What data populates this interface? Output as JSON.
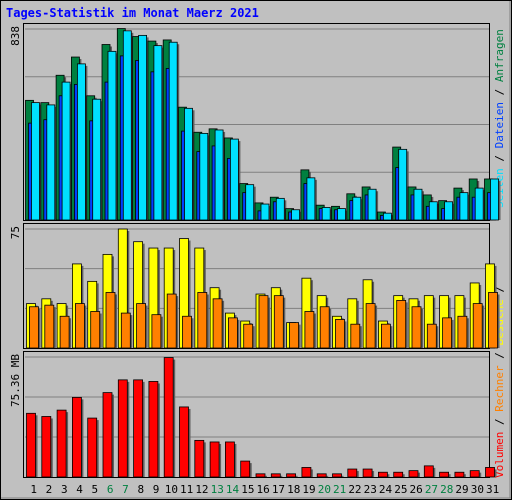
{
  "title": "Tages-Statistik im Monat Maerz 2021",
  "colors": {
    "background": "#c0c0c0",
    "anfragen": "#008040",
    "dateien": "#0040ff",
    "seiten": "#00e0ff",
    "besuche": "#ffff00",
    "rechner": "#ff8000",
    "volumen": "#ff0000",
    "weekend_label": "#008040",
    "weekday_label": "#000000"
  },
  "legend": {
    "right_upper": [
      {
        "text": "Seiten",
        "color": "#00e0ff"
      },
      {
        "text": " / ",
        "color": "#000000"
      },
      {
        "text": "Dateien",
        "color": "#0040ff"
      },
      {
        "text": " / ",
        "color": "#000000"
      },
      {
        "text": "Anfragen",
        "color": "#008040"
      }
    ],
    "right_lower": [
      {
        "text": "Volumen",
        "color": "#ff0000"
      },
      {
        "text": " / ",
        "color": "#000000"
      },
      {
        "text": "Rechner",
        "color": "#ff8000"
      },
      {
        "text": " / ",
        "color": "#000000"
      },
      {
        "text": "Besuche",
        "color": "#ffff00"
      },
      {
        "text": " / ",
        "color": "#000000"
      }
    ]
  },
  "chart_data": [
    {
      "type": "bar",
      "panel": "requests",
      "ylabel": "838",
      "ylim": [
        0,
        838
      ],
      "categories": [
        "1",
        "2",
        "3",
        "4",
        "5",
        "6",
        "7",
        "8",
        "9",
        "10",
        "11",
        "12",
        "13",
        "14",
        "15",
        "16",
        "17",
        "18",
        "19",
        "20",
        "21",
        "22",
        "23",
        "24",
        "25",
        "26",
        "27",
        "28",
        "29",
        "30",
        "31"
      ],
      "weekend": [
        "6",
        "7",
        "13",
        "14",
        "20",
        "21",
        "27",
        "28"
      ],
      "series": [
        {
          "name": "Anfragen",
          "color": "#008040",
          "values": [
            525,
            515,
            635,
            715,
            545,
            770,
            840,
            805,
            785,
            790,
            495,
            385,
            400,
            360,
            160,
            75,
            100,
            50,
            220,
            65,
            60,
            115,
            145,
            35,
            320,
            145,
            110,
            85,
            140,
            180,
            180
          ]
        },
        {
          "name": "Dateien",
          "color": "#0040ff",
          "values": [
            425,
            440,
            545,
            595,
            435,
            605,
            720,
            700,
            650,
            665,
            390,
            300,
            325,
            270,
            120,
            40,
            80,
            35,
            160,
            50,
            45,
            85,
            110,
            20,
            230,
            110,
            60,
            50,
            100,
            100,
            120
          ]
        },
        {
          "name": "Seiten",
          "color": "#00e0ff",
          "values": [
            515,
            505,
            605,
            685,
            530,
            740,
            830,
            810,
            765,
            780,
            490,
            380,
            395,
            355,
            155,
            70,
            95,
            45,
            185,
            55,
            50,
            100,
            135,
            30,
            310,
            135,
            80,
            80,
            120,
            140,
            180
          ]
        }
      ]
    },
    {
      "type": "bar",
      "panel": "visits",
      "ylabel": "75",
      "ylim": [
        0,
        75
      ],
      "categories": [
        "1",
        "2",
        "3",
        "4",
        "5",
        "6",
        "7",
        "8",
        "9",
        "10",
        "11",
        "12",
        "13",
        "14",
        "15",
        "16",
        "17",
        "18",
        "19",
        "20",
        "21",
        "22",
        "23",
        "24",
        "25",
        "26",
        "27",
        "28",
        "29",
        "30",
        "31"
      ],
      "series": [
        {
          "name": "Besuche",
          "color": "#ffff00",
          "values": [
            28,
            31,
            28,
            53,
            42,
            59,
            75,
            67,
            63,
            63,
            69,
            63,
            38,
            22,
            17,
            34,
            38,
            16,
            44,
            33,
            20,
            31,
            43,
            17,
            33,
            31,
            33,
            33,
            33,
            41,
            53
          ]
        },
        {
          "name": "Rechner",
          "color": "#ff8000",
          "values": [
            26,
            27,
            20,
            28,
            23,
            35,
            22,
            28,
            21,
            34,
            20,
            35,
            31,
            19,
            15,
            33,
            33,
            16,
            23,
            26,
            18,
            15,
            28,
            15,
            30,
            26,
            15,
            19,
            20,
            28,
            35
          ]
        }
      ]
    },
    {
      "type": "bar",
      "panel": "volume",
      "ylabel": "75.36 MB",
      "ylim": [
        0,
        75.36
      ],
      "categories": [
        "1",
        "2",
        "3",
        "4",
        "5",
        "6",
        "7",
        "8",
        "9",
        "10",
        "11",
        "12",
        "13",
        "14",
        "15",
        "16",
        "17",
        "18",
        "19",
        "20",
        "21",
        "22",
        "23",
        "24",
        "25",
        "26",
        "27",
        "28",
        "29",
        "30",
        "31"
      ],
      "series": [
        {
          "name": "Volumen",
          "color": "#ff0000",
          "values": [
            40,
            38,
            42,
            50,
            37,
            53,
            61,
            61,
            60,
            75,
            44,
            23,
            22,
            22,
            10,
            2,
            2,
            2,
            6,
            2,
            2,
            5,
            5,
            3,
            3,
            4,
            7,
            3,
            3,
            4,
            6
          ]
        }
      ]
    }
  ]
}
